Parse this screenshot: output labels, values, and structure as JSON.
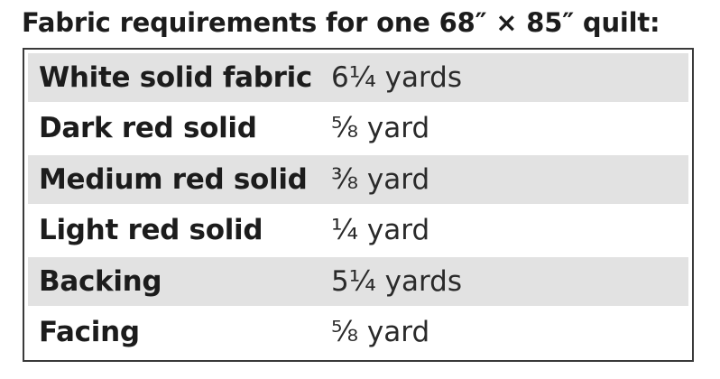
{
  "title": "Fabric requirements for one 68″ × 85″ quilt:",
  "rows": [
    {
      "label": "White solid fabric",
      "value": "6¼ yards"
    },
    {
      "label": "Dark red solid",
      "value": "⅝ yard"
    },
    {
      "label": "Medium red solid",
      "value": "⅜ yard"
    },
    {
      "label": "Light red solid",
      "value": "¼ yard"
    },
    {
      "label": "Backing",
      "value": "5¼ yards"
    },
    {
      "label": "Facing",
      "value": "⅝ yard"
    }
  ]
}
